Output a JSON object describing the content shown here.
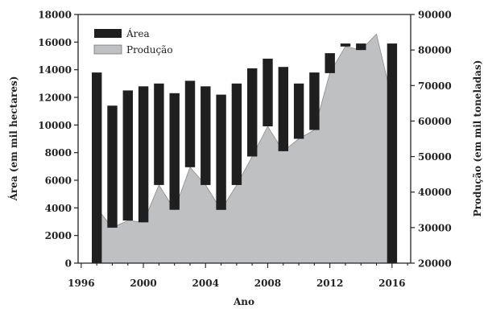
{
  "chart_data": {
    "type": "bar+area",
    "x": [
      1997,
      1998,
      1999,
      2000,
      2001,
      2002,
      2003,
      2004,
      2005,
      2006,
      2007,
      2008,
      2009,
      2010,
      2011,
      2012,
      2013,
      2014,
      2015,
      2016
    ],
    "series": [
      {
        "name": "Área",
        "type": "bar",
        "axis": "left",
        "color": "#1f1f1f",
        "values": [
          13800,
          11400,
          12500,
          12800,
          13000,
          12300,
          13200,
          12800,
          12200,
          13000,
          14100,
          14800,
          14200,
          13000,
          13800,
          15200,
          15900,
          15900,
          15900,
          15900
        ]
      },
      {
        "name": "Produção",
        "type": "area",
        "axis": "right",
        "color": "#bfc0c2",
        "values": [
          35500,
          30000,
          32000,
          31500,
          42000,
          35000,
          47000,
          42000,
          35000,
          42000,
          50000,
          58500,
          51500,
          55000,
          57500,
          73500,
          81000,
          80000,
          84500,
          66000
        ]
      }
    ],
    "xlabel": "Ano",
    "ylabel_left": "Área (em mil hectares)",
    "ylabel_right": "Produção (em mil toneladas)",
    "xticks": [
      "1996",
      "2000",
      "2004",
      "2008",
      "2012",
      "2016"
    ],
    "xtick_values": [
      1996,
      2000,
      2004,
      2008,
      2012,
      2016
    ],
    "xlim": [
      1995.8,
      2017.2
    ],
    "yticks_left": [
      "0",
      "2000",
      "4000",
      "6000",
      "8000",
      "10000",
      "12000",
      "14000",
      "16000",
      "18000"
    ],
    "ylim_left": [
      0,
      18000
    ],
    "yticks_right": [
      "20000",
      "30000",
      "40000",
      "50000",
      "60000",
      "70000",
      "80000",
      "90000"
    ],
    "ylim_right": [
      20000,
      90000
    ],
    "legend_position": "top-left",
    "grid": false
  }
}
